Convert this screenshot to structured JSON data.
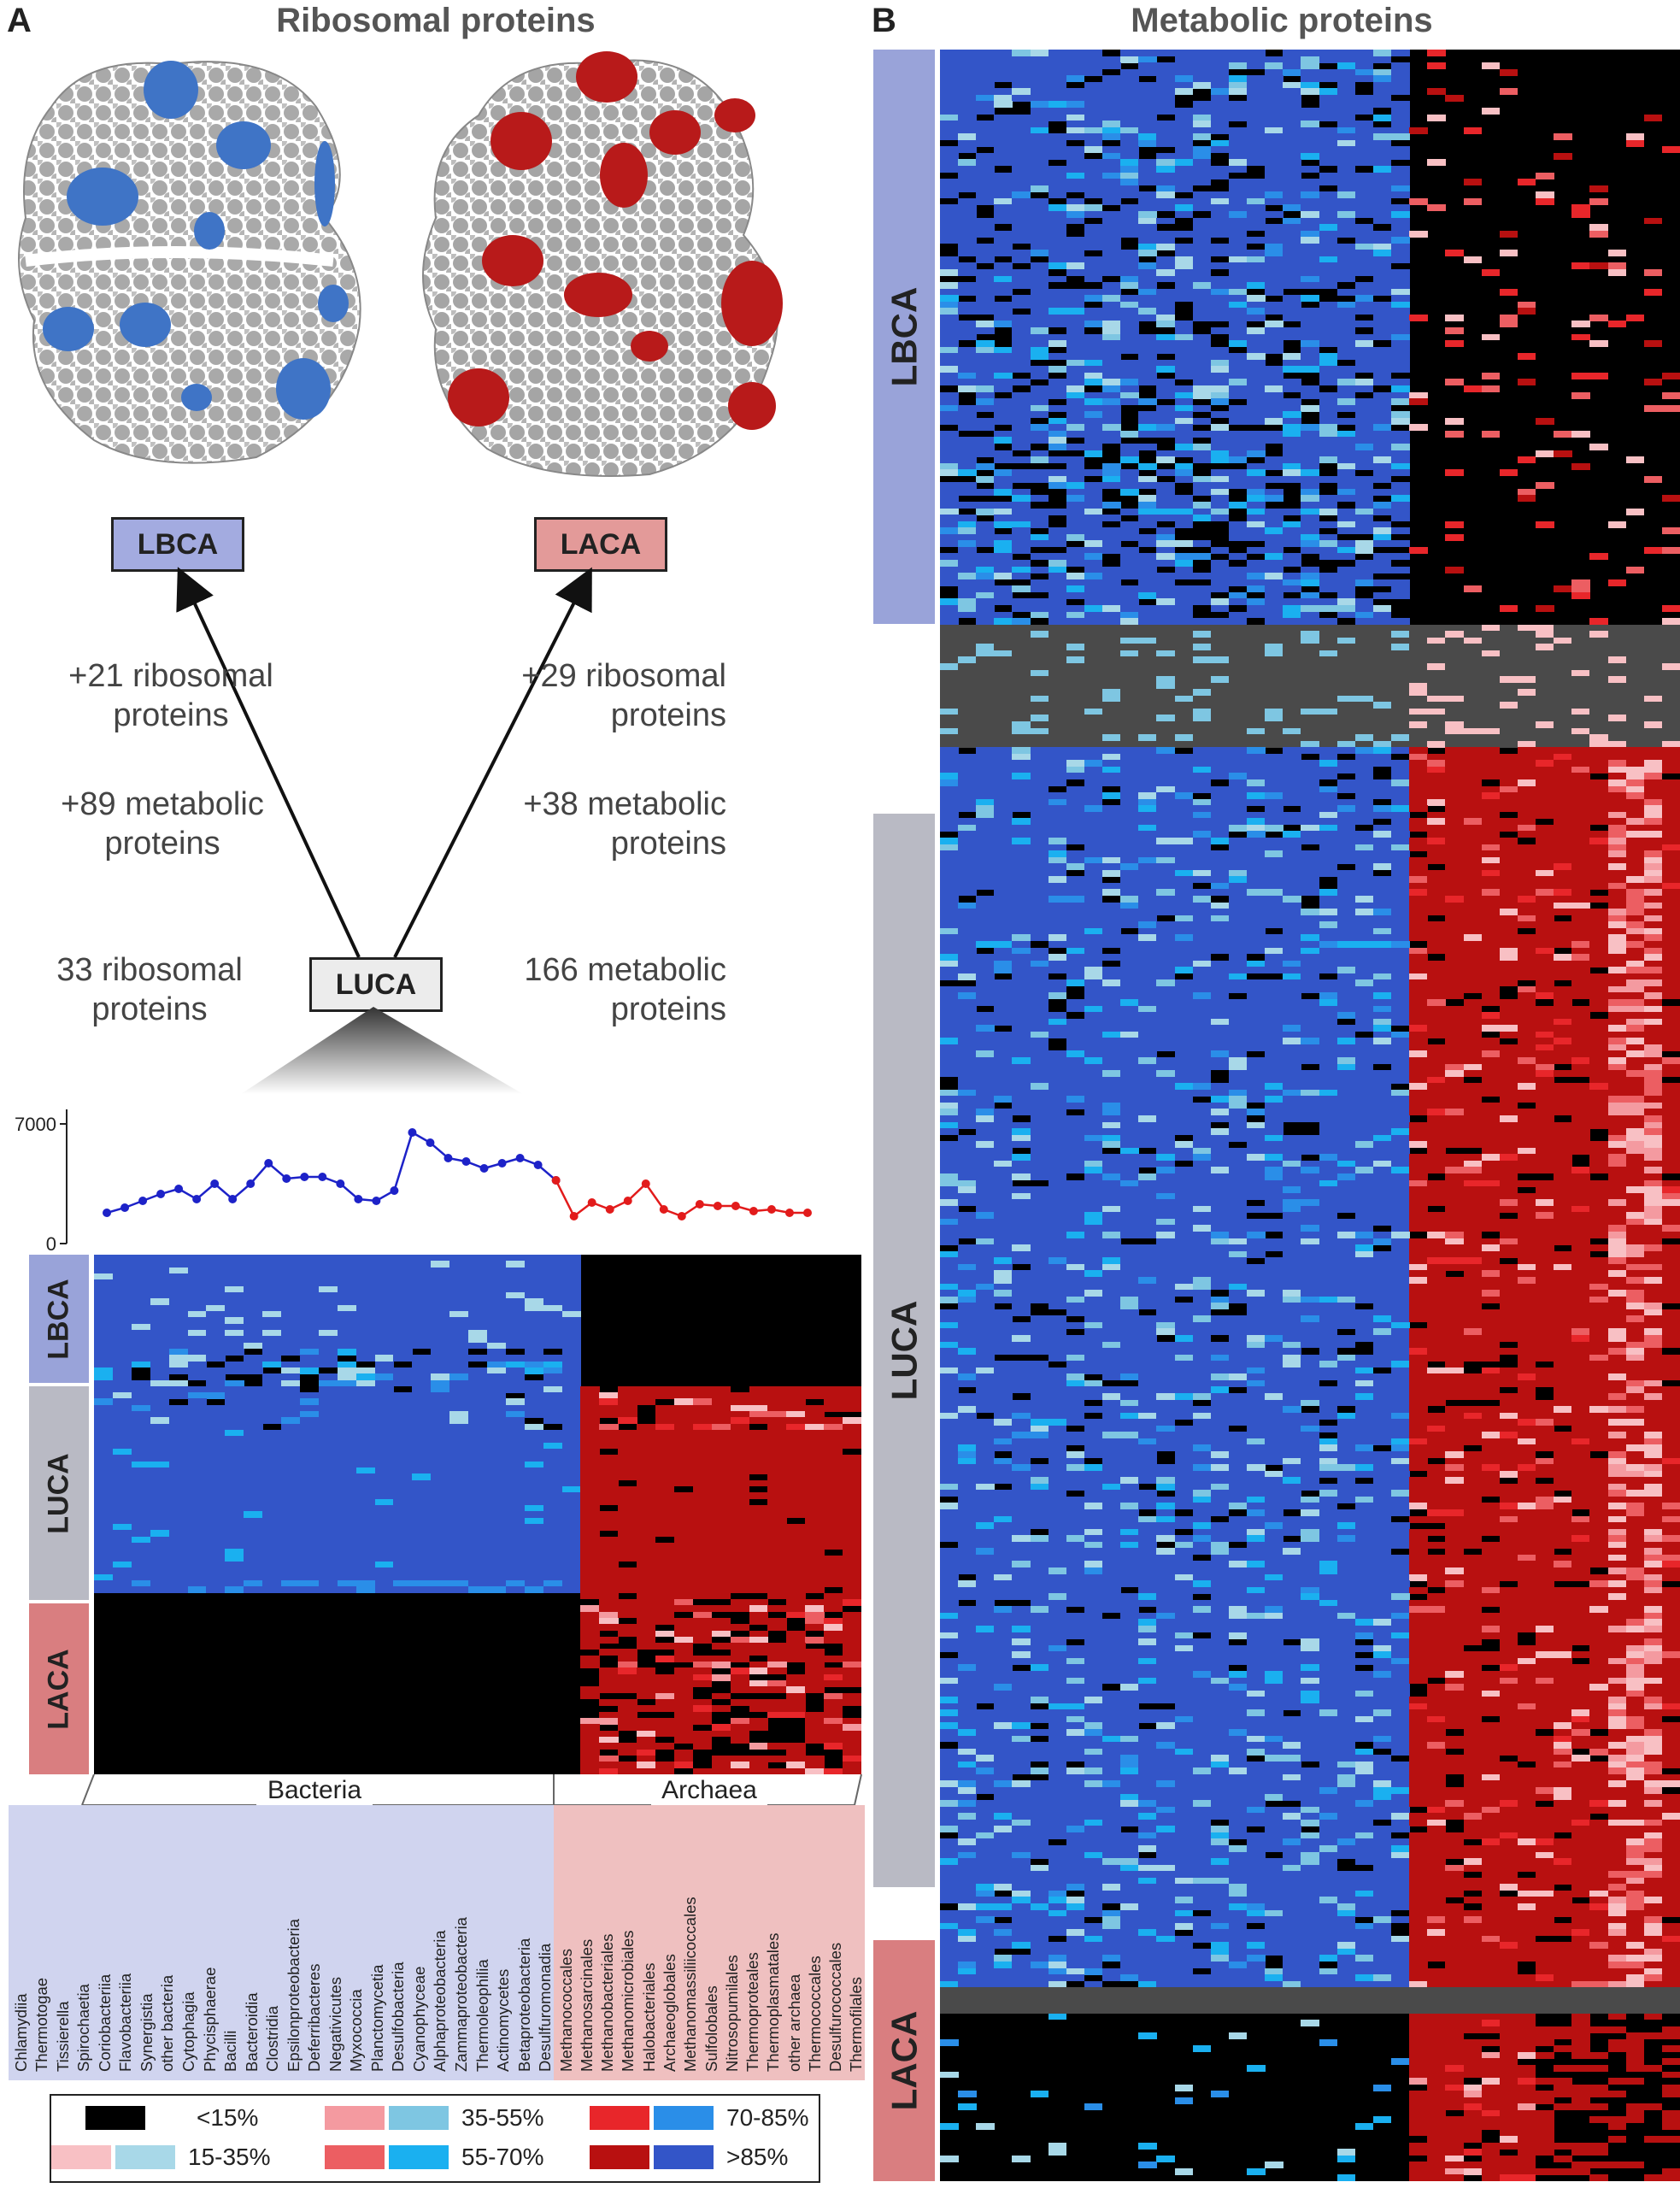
{
  "panel_a": {
    "letter": "A",
    "title": "Ribosomal proteins",
    "boxes": {
      "lbca": "LBCA",
      "laca": "LACA",
      "luca": "LUCA"
    },
    "annotations": {
      "left_ribo_1": "+21 ribosomal",
      "left_ribo_2": "proteins",
      "left_meta_1": "+89 metabolic",
      "left_meta_2": "proteins",
      "right_ribo_1": "+29 ribosomal",
      "right_ribo_2": "proteins",
      "right_meta_1": "+38 metabolic",
      "right_meta_2": "proteins",
      "luca_ribo_1": "33 ribosomal",
      "luca_ribo_2": "proteins",
      "luca_meta_1": "166 metabolic",
      "luca_meta_2": "proteins"
    },
    "line_chart": {
      "type": "line",
      "y_ticks": [
        "7000",
        "0"
      ],
      "ylim": [
        0,
        7000
      ],
      "series": [
        {
          "color": "#1d22c8",
          "values": [
            1800,
            2100,
            2500,
            2900,
            3200,
            2600,
            3500,
            2600,
            3500,
            4700,
            3800,
            3900,
            3900,
            3500,
            2600,
            2500,
            3100,
            6500,
            5900,
            5000,
            4800,
            4400,
            4700,
            5000,
            4600,
            3700
          ]
        },
        {
          "color": "#e21b1b",
          "values": [
            3700,
            1600,
            2400,
            2000,
            2500,
            3500,
            2000,
            1600,
            2300,
            2200,
            2200,
            1900,
            2000,
            1800,
            1800
          ]
        }
      ]
    },
    "group_labels": {
      "lbca": "LBCA",
      "luca": "LUCA",
      "laca": "LACA"
    },
    "domain_labels": {
      "bacteria": "Bacteria",
      "archaea": "Archaea"
    },
    "bacteria_taxa": [
      "Chlamydiia",
      "Thermotogae",
      "Tissierella",
      "Spirochaetia",
      "Coriobacteriia",
      "Flavobacteriia",
      "Synergistia",
      "other bacteria",
      "Cytophagia",
      "Phycisphaerae",
      "Bacilli",
      "Bacteroidia",
      "Clostridia",
      "Epsilonproteobacteria",
      "Deferribacteres",
      "Negativicutes",
      "Myxococcia",
      "Planctomycetia",
      "Desulfobacteria",
      "Cyanophyceae",
      "Alphaproteobacteria",
      "Zammaproteobacteria",
      "Thermoleophilia",
      "Actinomycetes",
      "Betaproteobacteria",
      "Desulfuromonadia"
    ],
    "archaea_taxa": [
      "Methanococcales",
      "Methanosarcinales",
      "Methanobacteriales",
      "Methanomicrobiales",
      "Halobacteriales",
      "Archaeoglobales",
      "Methanomassiliicoccales",
      "Sulfolobales",
      "Nitrosopumilales",
      "Thermoproteales",
      "Thermoplasmatales",
      "other archaea",
      "Thermococcales",
      "Desulfurococcales",
      "Thermofilales"
    ]
  },
  "panel_b": {
    "letter": "B",
    "title": "Metabolic proteins",
    "group_labels": {
      "lbca": "LBCA",
      "luca": "LUCA",
      "laca": "LACA"
    }
  },
  "legend": {
    "items": [
      "<15%",
      "15-35%",
      "35-55%",
      "55-70%",
      "70-85%",
      ">85%"
    ]
  },
  "colors": {
    "black": "#000000",
    "blue_15_35": "#a8d8e8",
    "blue_35_55": "#7ec6e2",
    "blue_55_70": "#1ab0f0",
    "blue_70_85": "#2a8ee8",
    "blue_85": "#3355c8",
    "red_15_35": "#f8c0c4",
    "red_35_55": "#f49aa0",
    "red_55_70": "#ec5e62",
    "red_70_85": "#e8262a",
    "red_85": "#b81010",
    "lbca_bar": "#99a3d9",
    "luca_bar": "#b9bac4",
    "laca_bar": "#d97e80",
    "gray_band": "#4a4a4a",
    "lbca_box": "#a3abe0",
    "laca_box": "#e39a99",
    "luca_box": "#ececec"
  }
}
